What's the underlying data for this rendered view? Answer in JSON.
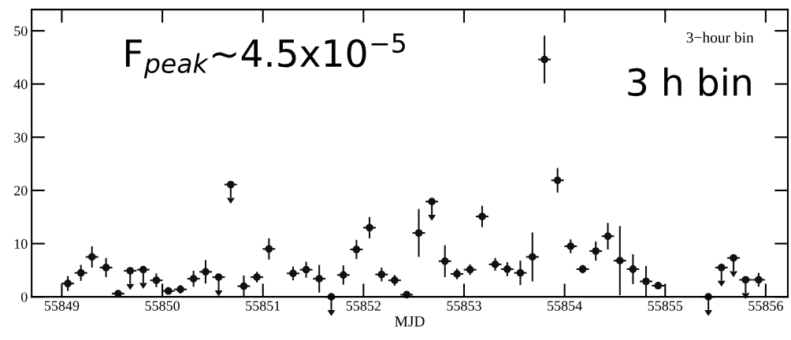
{
  "chart_data": {
    "type": "scatter",
    "xlabel": "MJD",
    "annotations": [
      "F$_{peak}$~4.5x10$^{−5}$",
      "3−hour bin",
      "3 h bin"
    ],
    "xlim": [
      55848.7,
      55856.22
    ],
    "xticks": [
      55849,
      55850,
      55851,
      55852,
      55853,
      55854,
      55855,
      55856
    ],
    "ylim": [
      0,
      54
    ],
    "yticks": [
      0,
      10,
      20,
      30,
      40,
      50
    ],
    "grid": false,
    "marker": "circle",
    "series": [
      {
        "color": "#111111",
        "x": [
          55849.06,
          55849.19,
          55849.3,
          55849.44,
          55849.56,
          55849.94,
          55850.06,
          55850.18,
          55850.31,
          55850.43,
          55850.81,
          55850.94,
          55851.06,
          55851.3,
          55851.43,
          55851.56,
          55851.8,
          55851.93,
          55852.06,
          55852.18,
          55852.31,
          55852.43,
          55852.55,
          55852.81,
          55852.93,
          55853.06,
          55853.18,
          55853.31,
          55853.43,
          55853.56,
          55853.68,
          55853.8,
          55853.93,
          55854.06,
          55854.18,
          55854.31,
          55854.43,
          55854.55,
          55854.68,
          55854.81,
          55854.93,
          55855.93
        ],
        "values": [
          2.5,
          4.5,
          7.5,
          5.5,
          0.6,
          3.1,
          1.1,
          1.4,
          3.4,
          4.7,
          2.0,
          3.7,
          9.0,
          4.4,
          5.1,
          3.4,
          4.1,
          8.9,
          13.0,
          4.2,
          3.1,
          0.4,
          12.0,
          6.7,
          4.3,
          5.1,
          15.1,
          6.1,
          5.2,
          4.5,
          7.5,
          44.6,
          21.9,
          9.5,
          5.2,
          8.6,
          11.4,
          6.8,
          5.2,
          2.9,
          2.1,
          3.2
        ],
        "errors": [
          1.4,
          1.5,
          2.0,
          1.8,
          0.3,
          1.3,
          0.3,
          0.8,
          1.5,
          2.2,
          2.0,
          1.0,
          2.0,
          1.3,
          1.5,
          2.6,
          1.8,
          1.8,
          2.0,
          1.3,
          1.0,
          0.2,
          4.5,
          3.0,
          1.0,
          1.0,
          2.0,
          1.2,
          1.3,
          2.3,
          4.6,
          4.5,
          2.3,
          1.3,
          0.8,
          1.8,
          2.5,
          6.5,
          2.8,
          2.9,
          0.5,
          1.3
        ],
        "xerrors": [
          0.0625,
          0.0625,
          0.0625,
          0.0625,
          0.0625,
          0.0625,
          0.0625,
          0.0625,
          0.0625,
          0.0625,
          0.0625,
          0.0625,
          0.0625,
          0.0625,
          0.0625,
          0.0625,
          0.0625,
          0.0625,
          0.0625,
          0.0625,
          0.0625,
          0.0625,
          0.0625,
          0.0625,
          0.0625,
          0.0625,
          0.0625,
          0.0625,
          0.0625,
          0.0625,
          0.0625,
          0.0625,
          0.0625,
          0.0625,
          0.0625,
          0.0625,
          0.0625,
          0.0625,
          0.0625,
          0.0625,
          0.0625,
          0.0625
        ]
      },
      {
        "color": "#111111",
        "x": [
          55849.68,
          55849.81,
          55850.56,
          55850.68,
          55851.68,
          55852.68,
          55855.43,
          55855.56,
          55855.68,
          55855.8
        ],
        "values": [
          4.9,
          5.1,
          3.7,
          21.1,
          0,
          17.9,
          0,
          5.5,
          7.3,
          3.2
        ],
        "errors": [
          [
            2.4,
            4.9
          ],
          [
            2.6,
            5.1
          ],
          [
            1.2,
            3.7
          ],
          [
            18.6,
            21.1
          ],
          [
            -2.5,
            0
          ],
          [
            15.4,
            17.9
          ],
          [
            -2.5,
            0
          ],
          [
            3.0,
            5.5
          ],
          [
            4.8,
            7.3
          ],
          [
            0.7,
            3.2
          ]
        ],
        "xerrors": [
          0.0625,
          0.0625,
          0.0625,
          0.0625,
          0.0625,
          0.0625,
          0.0625,
          0.0625,
          0.0625,
          0.0625
        ]
      }
    ]
  }
}
